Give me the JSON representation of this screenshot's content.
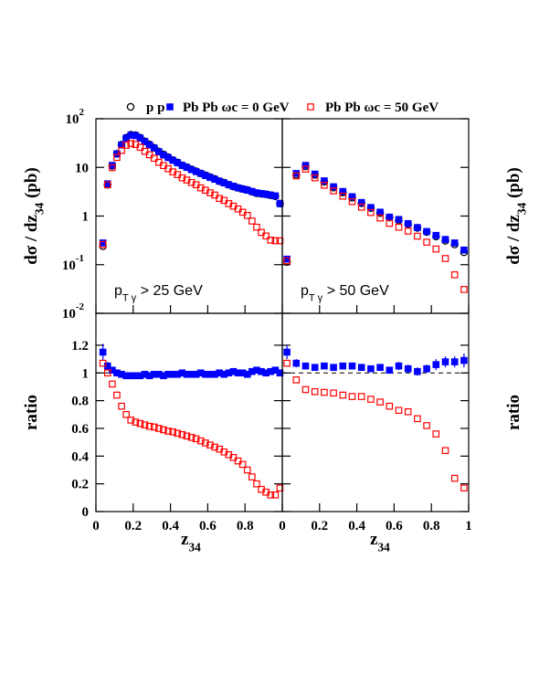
{
  "legend": [
    {
      "name": "p p",
      "color": "#000000",
      "marker": "open-circle"
    },
    {
      "name": "Pb Pb ωc = 0 GeV",
      "color": "#0000ff",
      "marker": "filled-square"
    },
    {
      "name": "Pb Pb ωc = 50 GeV",
      "color": "#ff0000",
      "marker": "open-square"
    }
  ],
  "chart_data": [
    {
      "type": "scatter",
      "log_y": true,
      "ylabel": {
        "text": "dσ / dz",
        "sub": "34",
        "rest": " (pb)"
      },
      "annotation": {
        "text": "p",
        "sub": "T γ",
        "rest": " > 25 GeV"
      },
      "xlim": [
        0,
        1
      ],
      "ylim": [
        0.01,
        100
      ],
      "xticks": [
        0,
        0.2,
        0.4,
        0.6,
        0.8
      ],
      "xtick_labels": false,
      "yticks": [
        {
          "value": 100,
          "label": "10",
          "exponent": "2"
        },
        10,
        1,
        {
          "value": 0.1,
          "label": "10",
          "exponent": "-1"
        },
        {
          "value": 0.01,
          "label": "10",
          "exponent": "-2"
        }
      ],
      "x": [
        0.0375,
        0.0625,
        0.0875,
        0.1125,
        0.1375,
        0.1625,
        0.1875,
        0.2125,
        0.2375,
        0.2625,
        0.2875,
        0.3125,
        0.3375,
        0.3625,
        0.3875,
        0.4125,
        0.4375,
        0.4625,
        0.4875,
        0.5125,
        0.5375,
        0.5625,
        0.5875,
        0.6125,
        0.6375,
        0.6625,
        0.6875,
        0.7125,
        0.7375,
        0.7625,
        0.7875,
        0.8125,
        0.8375,
        0.8625,
        0.8875,
        0.9125,
        0.9375,
        0.9625,
        0.9875
      ],
      "series": [
        {
          "name": "p p",
          "values": [
            0.24,
            4.4,
            10.8,
            19,
            29.3,
            40.8,
            46.9,
            45.9,
            40.8,
            34.3,
            29.6,
            25.3,
            21.2,
            18.4,
            16.2,
            14.1,
            12.6,
            11,
            10.1,
            9.1,
            8.3,
            7.5,
            6.9,
            6.3,
            5.8,
            5.2,
            4.85,
            4.4,
            4.06,
            3.8,
            3.6,
            3.43,
            3.17,
            2.94,
            2.87,
            2.8,
            2.67,
            2.55,
            1.8
          ]
        },
        {
          "name": "Pb Pb ωc = 0 GeV",
          "values": [
            0.28,
            4.6,
            11,
            19,
            29,
            40,
            46,
            45,
            40,
            34,
            29,
            25,
            21,
            18,
            16,
            14,
            12.5,
            11,
            10,
            9,
            8.2,
            7.5,
            6.8,
            6.2,
            5.7,
            5.2,
            4.8,
            4.4,
            4.1,
            3.8,
            3.6,
            3.4,
            3.2,
            3.0,
            2.9,
            2.8,
            2.7,
            2.6,
            1.8
          ]
        },
        {
          "name": "Pb Pb ωc = 50 GeV",
          "values": [
            0.26,
            4.4,
            9.9,
            16,
            22.3,
            28.6,
            31,
            29.6,
            25.9,
            21.4,
            18.2,
            15.4,
            12.7,
            10.9,
            9.4,
            8.1,
            7.1,
            6.1,
            5.5,
            4.9,
            4.4,
            3.8,
            3.4,
            3.0,
            2.7,
            2.3,
            2.1,
            1.8,
            1.6,
            1.4,
            1.2,
            1.03,
            0.79,
            0.59,
            0.46,
            0.39,
            0.32,
            0.31,
            0.31
          ]
        }
      ]
    },
    {
      "type": "scatter",
      "log_y": true,
      "ylabel": {
        "text": "dσ / dz",
        "sub": "34",
        "rest": " (pb)"
      },
      "annotation": {
        "text": "p",
        "sub": "T γ",
        "rest": " > 50 GeV"
      },
      "xlim": [
        0,
        1
      ],
      "ylim": [
        0.01,
        100
      ],
      "xticks": [
        0,
        0.2,
        0.4,
        0.6,
        0.8,
        1
      ],
      "xtick_labels": false,
      "yticks": [
        100,
        10,
        1,
        0.1,
        0.01
      ],
      "ytick_labels": false,
      "x": [
        0.025,
        0.075,
        0.125,
        0.175,
        0.225,
        0.275,
        0.325,
        0.375,
        0.425,
        0.475,
        0.525,
        0.575,
        0.625,
        0.675,
        0.725,
        0.775,
        0.825,
        0.875,
        0.925,
        0.975
      ],
      "series": [
        {
          "name": "p p",
          "values": [
            0.113,
            7.0,
            10.5,
            7.0,
            5.05,
            3.85,
            3.05,
            2.38,
            1.83,
            1.46,
            1.15,
            0.93,
            0.81,
            0.68,
            0.57,
            0.47,
            0.38,
            0.31,
            0.26,
            0.18
          ]
        },
        {
          "name": "Pb Pb ωc = 0 GeV",
          "values": [
            0.13,
            7.5,
            11,
            7.3,
            5.3,
            4.0,
            3.2,
            2.5,
            1.9,
            1.5,
            1.2,
            0.95,
            0.85,
            0.7,
            0.58,
            0.48,
            0.4,
            0.33,
            0.28,
            0.2
          ]
        },
        {
          "name": "Pb Pb ωc = 50 GeV",
          "values": [
            0.12,
            6.7,
            9.2,
            6.1,
            4.3,
            3.3,
            2.56,
            1.98,
            1.52,
            1.18,
            0.91,
            0.71,
            0.59,
            0.49,
            0.385,
            0.29,
            0.21,
            0.134,
            0.062,
            0.031
          ]
        }
      ]
    },
    {
      "type": "scatter",
      "ylabel": "ratio",
      "xlabel": {
        "text": "z",
        "sub": "34"
      },
      "hline": 1,
      "xlim": [
        0,
        1
      ],
      "ylim": [
        0,
        1.43
      ],
      "xticks": [
        0,
        0.2,
        0.4,
        0.6,
        0.8
      ],
      "yticks": [
        0,
        0.2,
        0.4,
        0.6,
        0.8,
        1,
        1.2
      ],
      "x": [
        0.0375,
        0.0625,
        0.0875,
        0.1125,
        0.1375,
        0.1625,
        0.1875,
        0.2125,
        0.2375,
        0.2625,
        0.2875,
        0.3125,
        0.3375,
        0.3625,
        0.3875,
        0.4125,
        0.4375,
        0.4625,
        0.4875,
        0.5125,
        0.5375,
        0.5625,
        0.5875,
        0.6125,
        0.6375,
        0.6625,
        0.6875,
        0.7125,
        0.7375,
        0.7625,
        0.7875,
        0.8125,
        0.8375,
        0.8625,
        0.8875,
        0.9125,
        0.9375,
        0.9625,
        0.9875
      ],
      "series": [
        {
          "name": "Pb Pb ωc = 0 GeV",
          "values": [
            1.15,
            1.05,
            1.02,
            1.0,
            0.99,
            0.98,
            0.98,
            0.98,
            0.98,
            0.99,
            0.98,
            0.99,
            0.99,
            0.98,
            0.99,
            0.99,
            0.99,
            1.0,
            0.99,
            0.99,
            0.99,
            1.0,
            0.99,
            0.99,
            0.99,
            1.0,
            0.99,
            1.0,
            1.01,
            1.0,
            1.0,
            0.99,
            1.01,
            1.02,
            1.01,
            1.0,
            1.01,
            1.02,
            1.0
          ],
          "errors": [
            0.06,
            0.03,
            0.02,
            0.01,
            0.01,
            0.01,
            0.01,
            0.01,
            0.01,
            0.01,
            0.01,
            0.01,
            0.01,
            0.01,
            0.01,
            0.01,
            0.01,
            0.01,
            0.01,
            0.01,
            0.01,
            0.01,
            0.01,
            0.01,
            0.01,
            0.01,
            0.01,
            0.01,
            0.01,
            0.01,
            0.01,
            0.01,
            0.01,
            0.01,
            0.01,
            0.01,
            0.01,
            0.01,
            0.02
          ]
        },
        {
          "name": "Pb Pb ωc = 50 GeV",
          "values": [
            1.07,
            1.0,
            0.92,
            0.84,
            0.76,
            0.7,
            0.66,
            0.645,
            0.635,
            0.625,
            0.615,
            0.61,
            0.6,
            0.59,
            0.58,
            0.575,
            0.565,
            0.555,
            0.545,
            0.535,
            0.525,
            0.51,
            0.495,
            0.48,
            0.465,
            0.45,
            0.43,
            0.41,
            0.39,
            0.365,
            0.34,
            0.3,
            0.25,
            0.2,
            0.16,
            0.14,
            0.12,
            0.12,
            0.17
          ]
        }
      ]
    },
    {
      "type": "scatter",
      "ylabel": "ratio",
      "xlabel": {
        "text": "z",
        "sub": "34"
      },
      "hline": 1,
      "xlim": [
        0,
        1
      ],
      "ylim": [
        0,
        1.43
      ],
      "xticks": [
        0,
        0.2,
        0.4,
        0.6,
        0.8,
        1
      ],
      "yticks": [
        0,
        0.2,
        0.4,
        0.6,
        0.8,
        1,
        1.2
      ],
      "ytick_labels": false,
      "x": [
        0.025,
        0.075,
        0.125,
        0.175,
        0.225,
        0.275,
        0.325,
        0.375,
        0.425,
        0.475,
        0.525,
        0.575,
        0.625,
        0.675,
        0.725,
        0.775,
        0.825,
        0.875,
        0.925,
        0.975
      ],
      "series": [
        {
          "name": "Pb Pb ωc = 0 GeV",
          "values": [
            1.15,
            1.07,
            1.05,
            1.04,
            1.05,
            1.04,
            1.05,
            1.05,
            1.04,
            1.03,
            1.04,
            1.02,
            1.05,
            1.03,
            1.01,
            1.03,
            1.06,
            1.08,
            1.08,
            1.09
          ],
          "errors": [
            0.05,
            0.03,
            0.02,
            0.02,
            0.02,
            0.02,
            0.02,
            0.02,
            0.02,
            0.02,
            0.02,
            0.02,
            0.03,
            0.03,
            0.03,
            0.03,
            0.04,
            0.04,
            0.04,
            0.05
          ]
        },
        {
          "name": "Pb Pb ωc = 50 GeV",
          "values": [
            1.07,
            0.95,
            0.88,
            0.865,
            0.86,
            0.855,
            0.84,
            0.83,
            0.83,
            0.81,
            0.79,
            0.76,
            0.73,
            0.72,
            0.67,
            0.62,
            0.56,
            0.44,
            0.24,
            0.17
          ]
        }
      ]
    }
  ]
}
